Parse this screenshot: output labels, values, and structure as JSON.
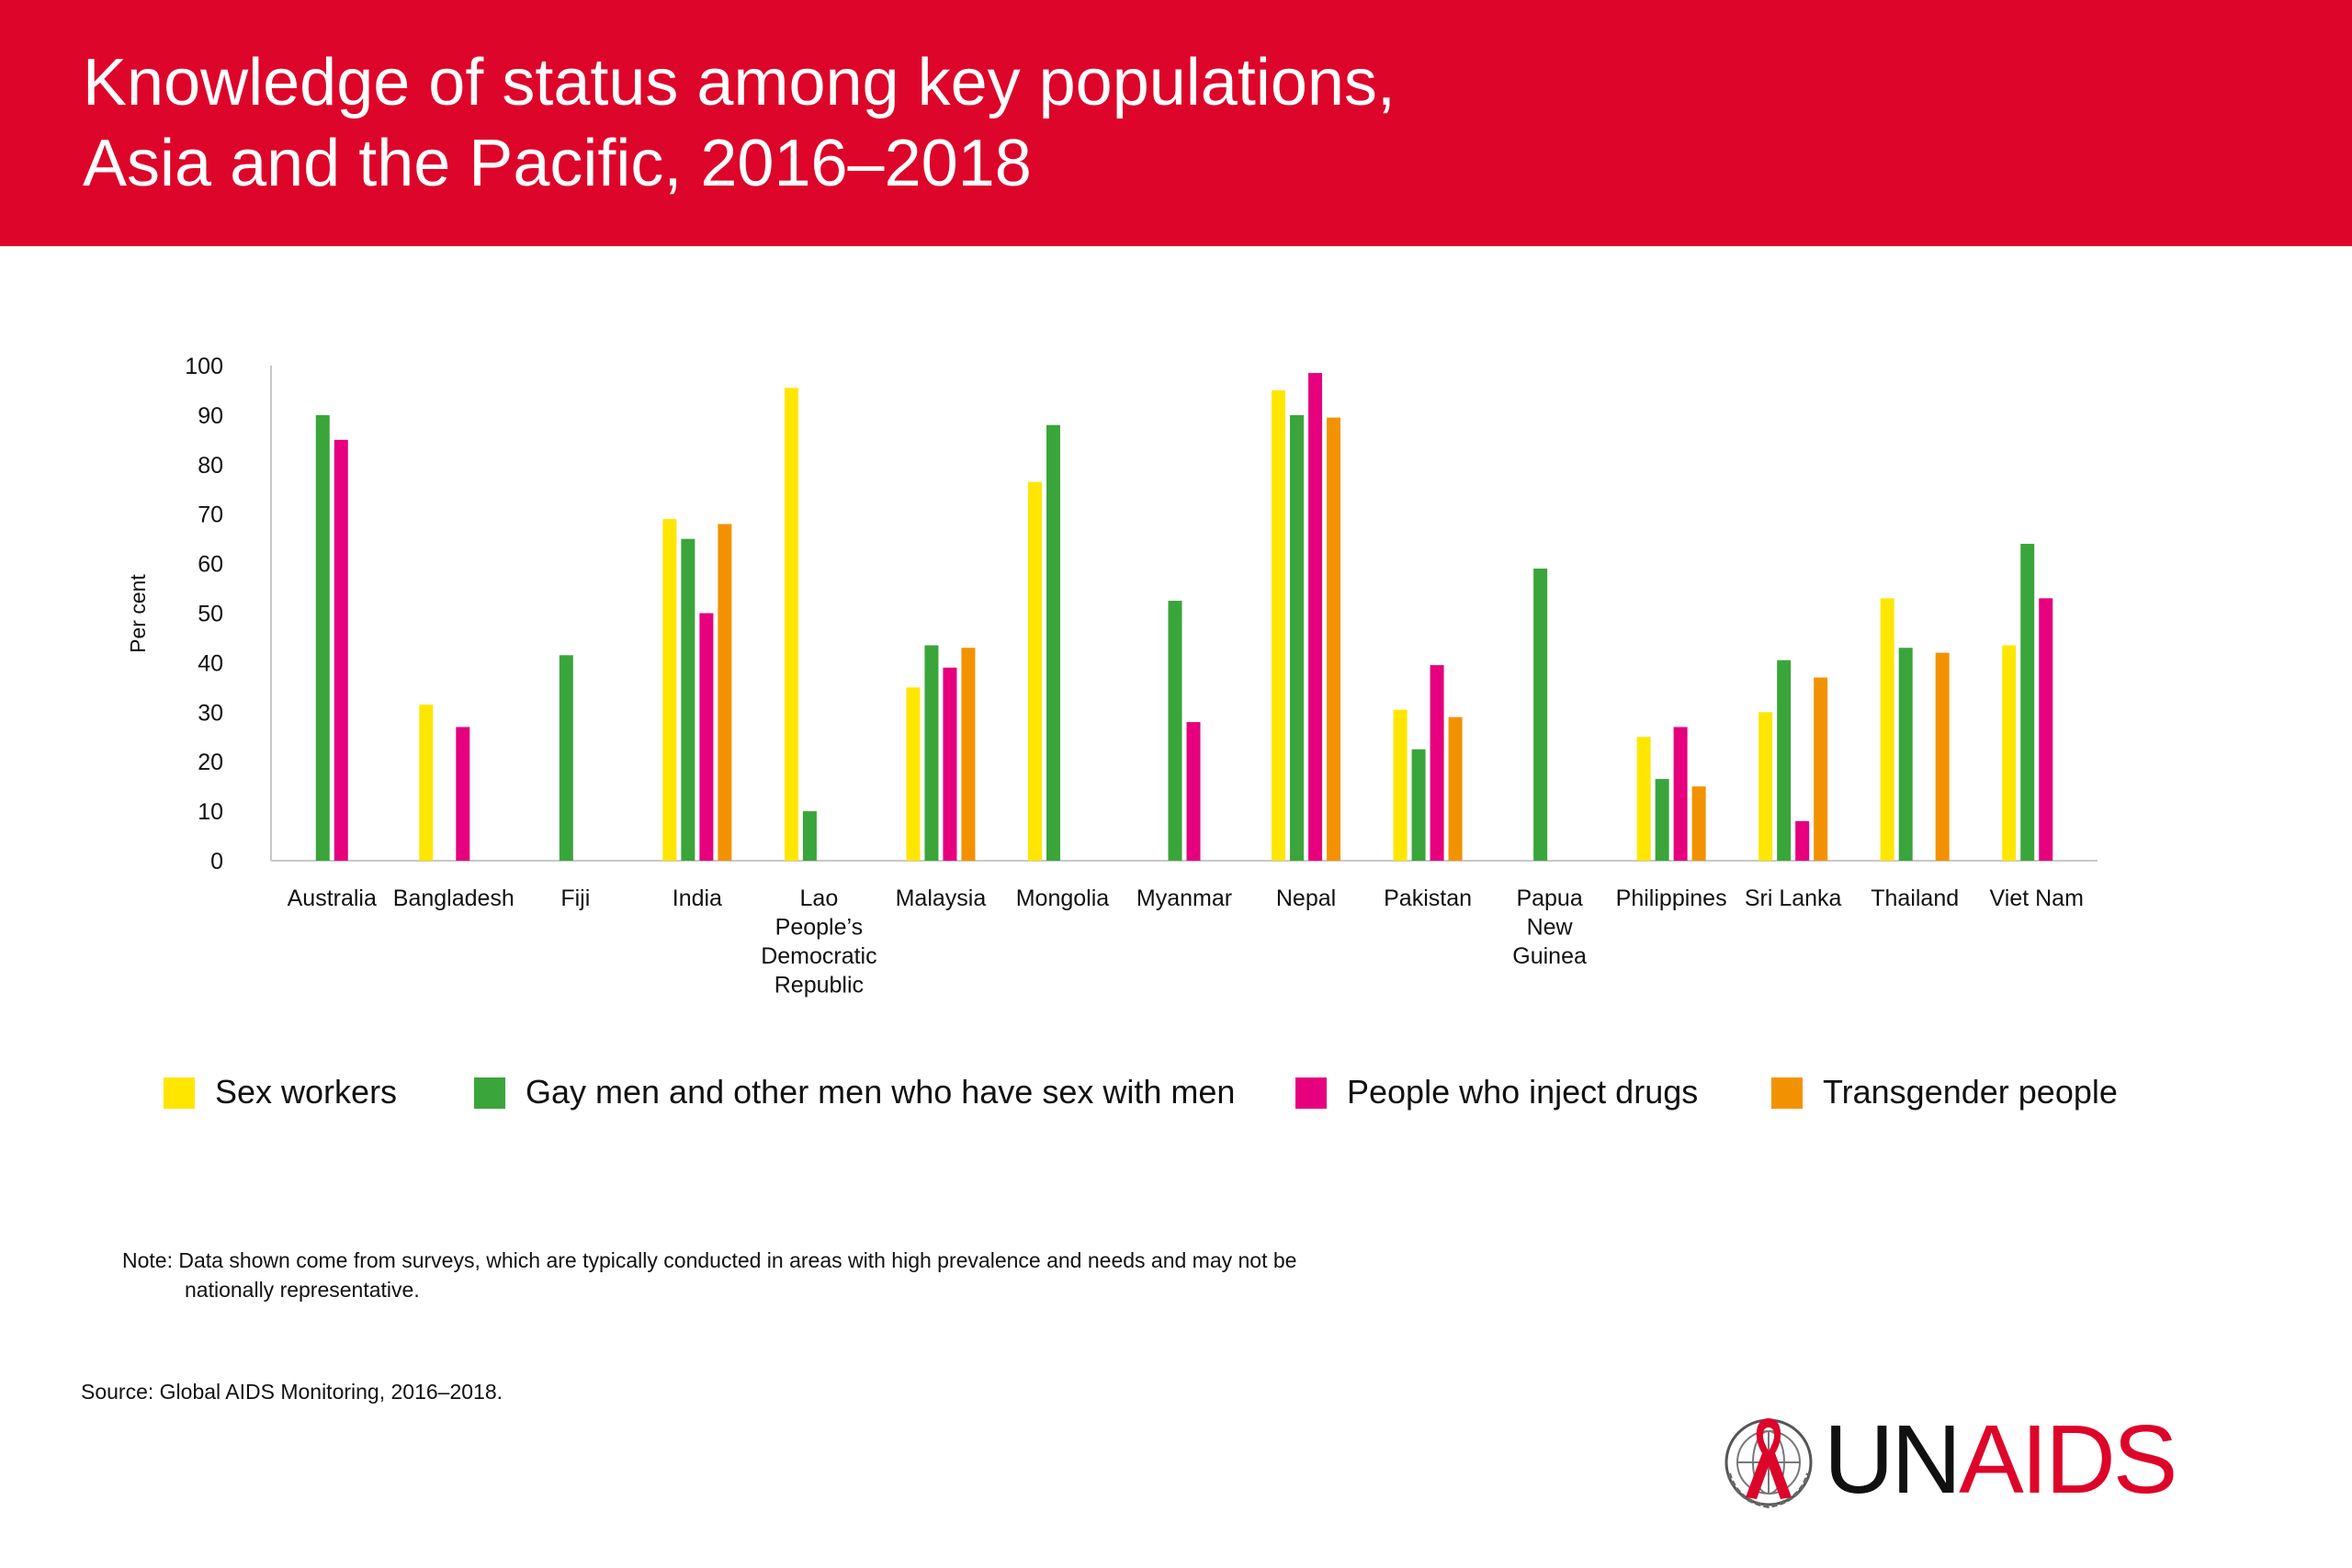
{
  "header": {
    "title_line1": "Knowledge of status among key populations,",
    "title_line2": "Asia and the Pacific, 2016–2018"
  },
  "colors": {
    "header_bg": "#dd0529",
    "sex_workers": "#ffe600",
    "msm": "#3aa53a",
    "pwid": "#e6007e",
    "transgender": "#f39200"
  },
  "chart_data": {
    "type": "bar",
    "title": "Knowledge of status among key populations, Asia and the Pacific, 2016–2018",
    "xlabel": "",
    "ylabel": "Per cent",
    "ylim": [
      0,
      100
    ],
    "yticks": [
      0,
      10,
      20,
      30,
      40,
      50,
      60,
      70,
      80,
      90,
      100
    ],
    "grid": false,
    "legend_position": "bottom",
    "categories": [
      [
        "Australia"
      ],
      [
        "Bangladesh"
      ],
      [
        "Fiji"
      ],
      [
        "India"
      ],
      [
        "Lao",
        "People’s",
        "Democratic",
        "Republic"
      ],
      [
        "Malaysia"
      ],
      [
        "Mongolia"
      ],
      [
        "Myanmar"
      ],
      [
        "Nepal"
      ],
      [
        "Pakistan"
      ],
      [
        "Papua",
        "New",
        "Guinea"
      ],
      [
        "Philippines"
      ],
      [
        "Sri Lanka"
      ],
      [
        "Thailand"
      ],
      [
        "Viet Nam"
      ]
    ],
    "series": [
      {
        "name": "Sex workers",
        "color": "#ffe600",
        "values": [
          null,
          31.5,
          null,
          69,
          95.5,
          35,
          76.5,
          null,
          95,
          30.5,
          null,
          25,
          30,
          53,
          43.5
        ]
      },
      {
        "name": "Gay men and other men who have sex with men",
        "color": "#3aa53a",
        "values": [
          90,
          null,
          41.5,
          65,
          10,
          43.5,
          88,
          52.5,
          90,
          22.5,
          59,
          16.5,
          40.5,
          43,
          64
        ]
      },
      {
        "name": "People who inject drugs",
        "color": "#e6007e",
        "values": [
          85,
          27,
          null,
          50,
          null,
          39,
          null,
          28,
          98.5,
          39.5,
          null,
          27,
          8,
          null,
          53
        ]
      },
      {
        "name": "Transgender people",
        "color": "#f39200",
        "values": [
          null,
          null,
          null,
          68,
          null,
          43,
          null,
          null,
          89.5,
          29,
          null,
          15,
          37,
          42,
          null
        ]
      }
    ]
  },
  "note": {
    "line1": "Note: Data shown come from surveys, which are typically conducted in areas with high prevalence and needs and may not be",
    "line2": "nationally representative."
  },
  "source": "Source: Global AIDS Monitoring, 2016–2018.",
  "logo": {
    "text_un": "UN",
    "text_aids": "AIDS",
    "emblem_icon": "un-emblem-red-ribbon-icon"
  }
}
